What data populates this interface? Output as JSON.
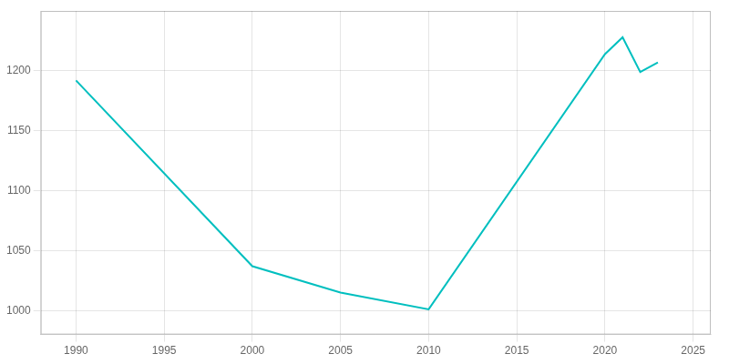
{
  "chart_data": {
    "type": "line",
    "x": [
      1990,
      2000,
      2005,
      2010,
      2020,
      2021,
      2022,
      2023
    ],
    "values": [
      1192,
      1037,
      1015,
      1001,
      1214,
      1228,
      1199,
      1207
    ],
    "color": "#00BFBF",
    "xlim": [
      1988,
      2026
    ],
    "ylim": [
      980,
      1250
    ],
    "xticks": [
      1990,
      1995,
      2000,
      2005,
      2010,
      2015,
      2020,
      2025
    ],
    "yticks": [
      1000,
      1050,
      1100,
      1150,
      1200
    ],
    "grid": true
  }
}
